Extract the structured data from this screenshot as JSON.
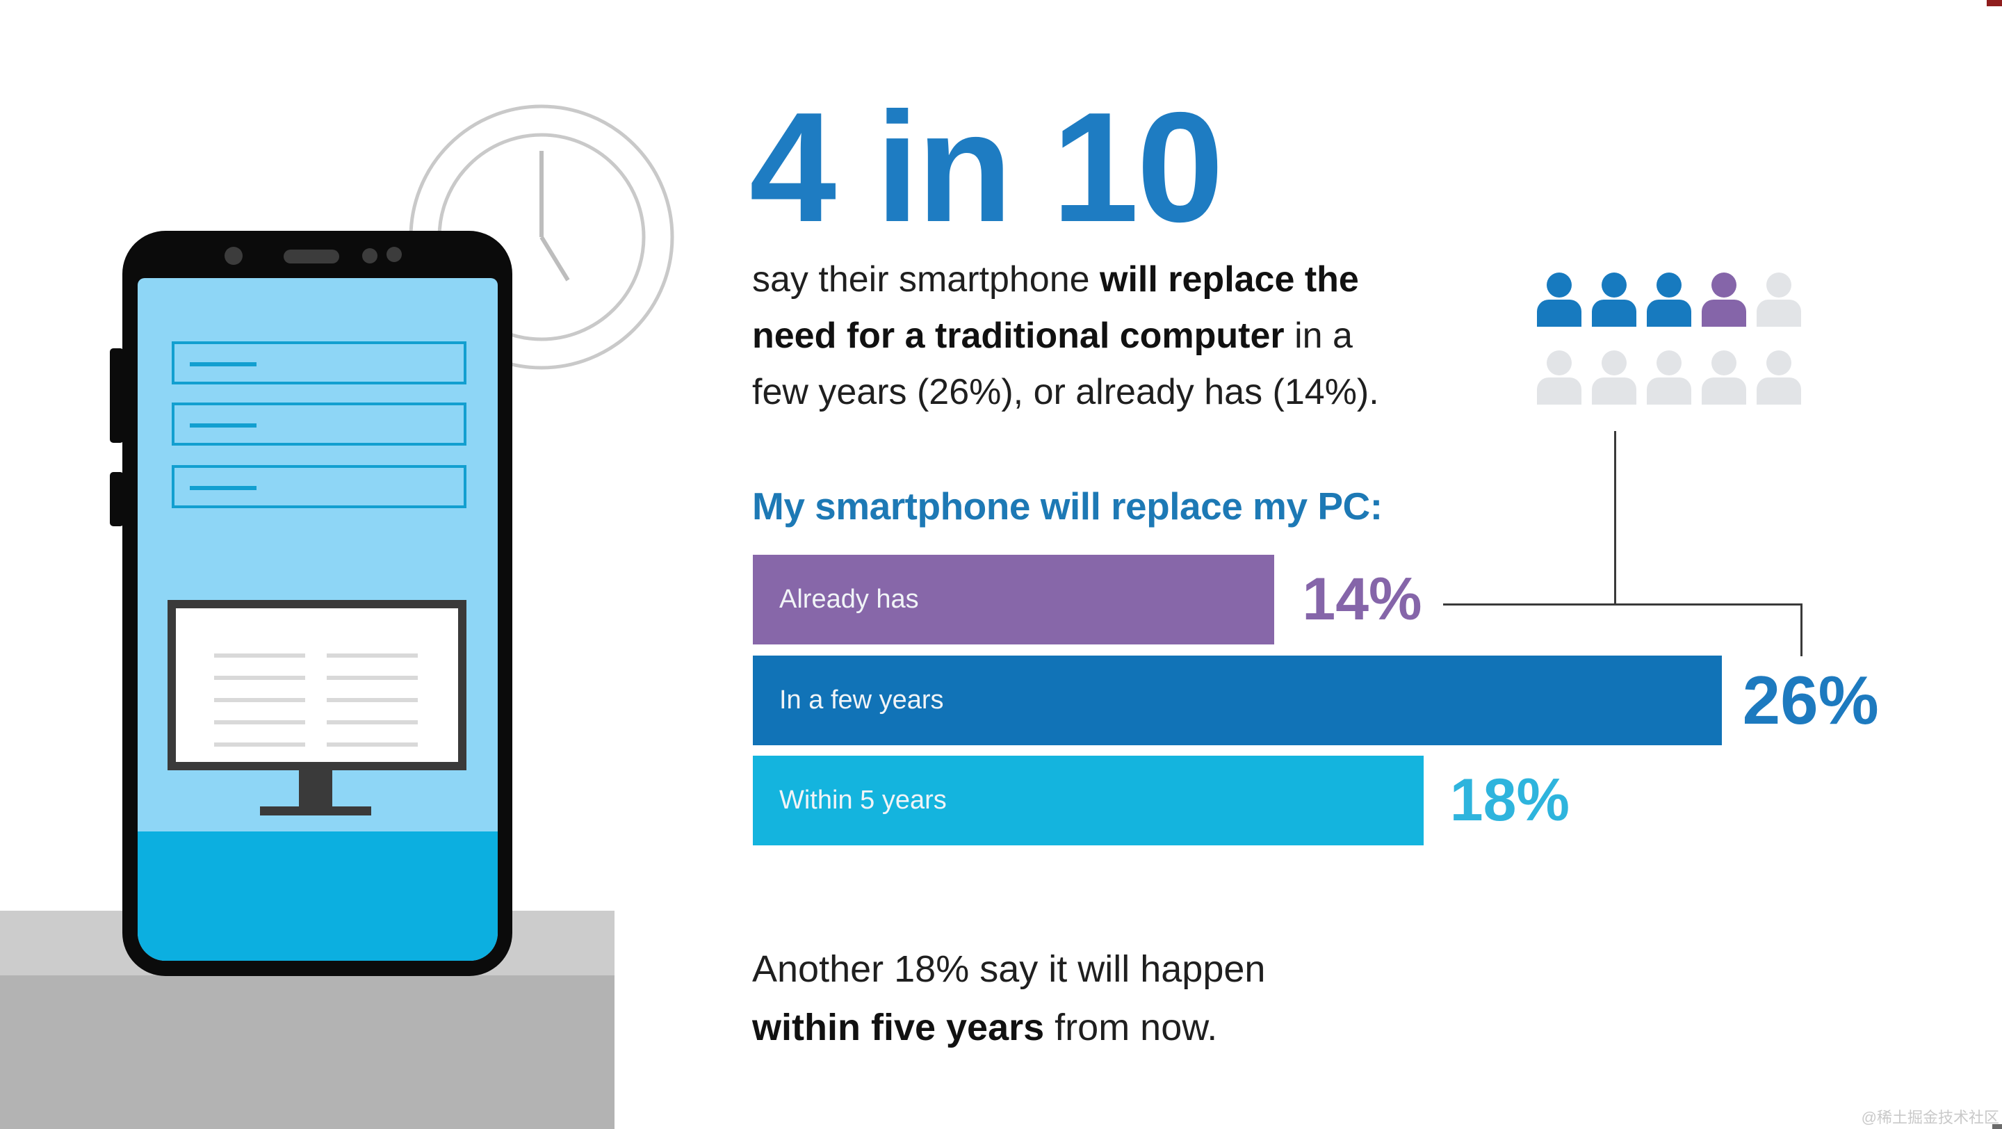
{
  "headline": {
    "text": "4 in 10"
  },
  "intro": {
    "line1_regular": "say their smartphone ",
    "line1_bold": "will replace the",
    "line2_bold": "need for a traditional computer",
    "line2_regular": " in a",
    "line3": "few years (26%), or already has (14%)."
  },
  "people_grid": {
    "rows": 2,
    "cols": 5,
    "icon_colors": [
      "#177abf",
      "#177abf",
      "#177abf",
      "#8565a9",
      "#e2e4e7",
      "#e2e4e7",
      "#e2e4e7",
      "#e2e4e7",
      "#e2e4e7",
      "#e2e4e7"
    ],
    "blue_count": 3,
    "purple_count": 1,
    "gray_count": 6
  },
  "chart_data": {
    "type": "bar",
    "orientation": "horizontal",
    "title": "My smartphone will replace my PC:",
    "categories": [
      "Already has",
      "In a few years",
      "Within 5 years"
    ],
    "values": [
      14,
      26,
      18
    ],
    "value_labels": [
      "14%",
      "26%",
      "18%"
    ],
    "unit": "%",
    "xlim": [
      0,
      26
    ],
    "bar_colors": [
      "#8767a9",
      "#1173b7",
      "#14b4de"
    ],
    "label_colors": [
      "#8565a9",
      "#1d7abf",
      "#2eb4dd"
    ],
    "grid": "off",
    "legend": "none"
  },
  "footnote": {
    "line1": "Another 18% say it will happen",
    "line2_bold": "within five years",
    "line2_regular": " from now."
  },
  "watermark": "@稀土掘金技术社区"
}
